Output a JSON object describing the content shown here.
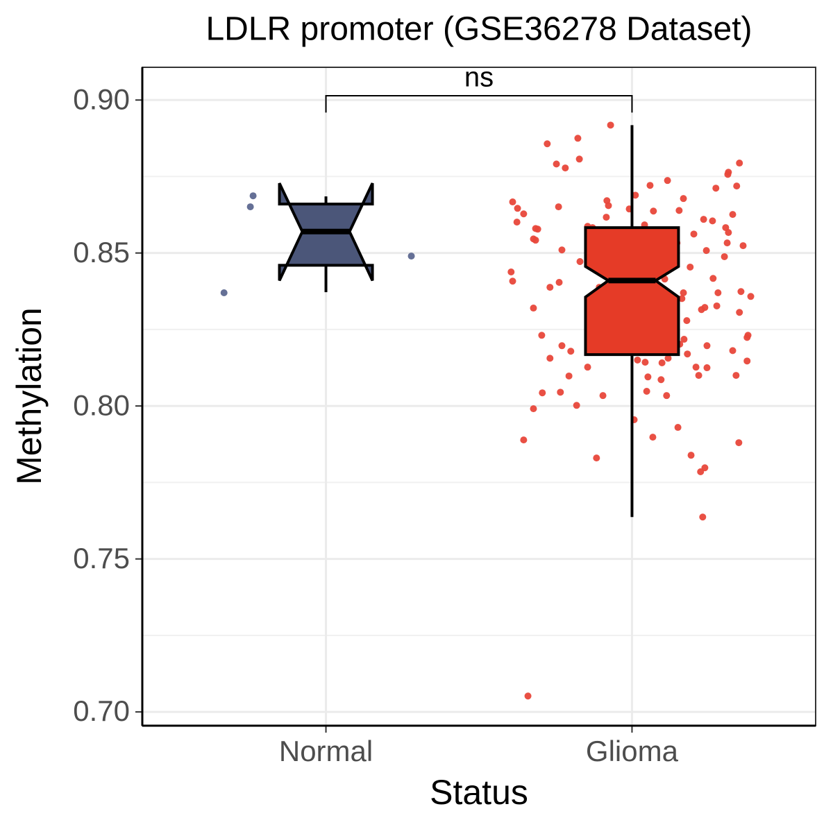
{
  "chart_data": {
    "type": "boxplot",
    "title": "LDLR promoter (GSE36278 Dataset)",
    "x_label": "Status",
    "y_label": "Methylation",
    "categories": [
      "Normal",
      "Glioma"
    ],
    "xlim": [
      0.4,
      2.6
    ],
    "ylim": [
      0.6955,
      0.9107
    ],
    "yticks": [
      {
        "value": 0.7,
        "label": "0.70"
      },
      {
        "value": 0.75,
        "label": "0.75"
      },
      {
        "value": 0.8,
        "label": "0.80"
      },
      {
        "value": 0.85,
        "label": "0.85"
      },
      {
        "value": 0.9,
        "label": "0.90"
      }
    ],
    "y_minor_grid": [
      0.725,
      0.775,
      0.825,
      0.875
    ],
    "grid": true,
    "boxes": [
      {
        "fill": "#4b5679",
        "whisker_low": 0.8372,
        "q1": 0.846,
        "median": 0.857,
        "q3": 0.866,
        "whisker_high": 0.8685,
        "notch_low": 0.841,
        "notch_high": 0.8728
      },
      {
        "fill": "#e53b27",
        "whisker_low": 0.7637,
        "q1": 0.8168,
        "median": 0.841,
        "q3": 0.8583,
        "whisker_high": 0.8918,
        "notch_low": 0.8356,
        "notch_high": 0.8456
      }
    ],
    "points": [
      {
        "color": "#5d6890",
        "x": [
          0.762,
          0.753,
          0.667,
          1.279
        ],
        "values": [
          0.8687,
          0.8651,
          0.837,
          0.849
        ]
      },
      {
        "color": "#e8473a",
        "x": [
          1.93,
          1.823,
          1.723,
          1.828,
          1.753,
          1.782,
          2.351,
          2.315,
          2.313,
          2.342,
          2.274,
          2.116,
          2.059,
          2.011,
          2.168,
          1.918,
          1.61,
          1.923,
          1.626,
          1.76,
          1.991,
          2.154,
          2.07,
          1.646,
          2.329,
          1.916,
          1.624,
          2.234,
          2.263,
          2.041,
          1.855,
          1.871,
          1.685,
          1.692,
          2.306,
          2.315,
          2.202,
          1.678,
          1.685,
          2.311,
          2.363,
          2.147,
          1.771,
          2.243,
          2.302,
          1.83,
          2.19,
          1.605,
          2.265,
          1.61,
          1.762,
          2.107,
          2.048,
          1.732,
          1.893,
          2.356,
          2.281,
          2.168,
          2.388,
          2.163,
          2.238,
          2.227,
          2.277,
          1.678,
          2.351,
          2.179,
          1.705,
          2.379,
          2.376,
          2.17,
          2.156,
          1.771,
          2.245,
          1.8,
          2.329,
          2.181,
          2.018,
          1.732,
          2.118,
          2.376,
          2.043,
          2.209,
          2.098,
          2.245,
          1.855,
          2.218,
          2.34,
          2.052,
          1.794,
          2.095,
          2.048,
          2.113,
          1.707,
          1.766,
          1.905,
          1.819,
          1.678,
          2.007,
          2.15,
          2.068,
          1.646,
          2.349,
          1.884,
          2.193,
          2.238,
          2.224,
          2.231,
          1.66
        ],
        "values": [
          0.8918,
          0.8875,
          0.8857,
          0.8807,
          0.8791,
          0.8778,
          0.8794,
          0.8764,
          0.8757,
          0.8719,
          0.8712,
          0.8737,
          0.8721,
          0.8689,
          0.8678,
          0.8671,
          0.8667,
          0.8655,
          0.8646,
          0.8651,
          0.8644,
          0.8639,
          0.8637,
          0.8628,
          0.8626,
          0.8617,
          0.8601,
          0.861,
          0.8605,
          0.8592,
          0.8587,
          0.8583,
          0.858,
          0.8578,
          0.8583,
          0.8567,
          0.8562,
          0.8546,
          0.8542,
          0.8533,
          0.8524,
          0.8533,
          0.851,
          0.8508,
          0.8488,
          0.8472,
          0.8454,
          0.8438,
          0.8417,
          0.8408,
          0.8404,
          0.8415,
          0.841,
          0.8388,
          0.8388,
          0.8374,
          0.837,
          0.837,
          0.8358,
          0.8351,
          0.8322,
          0.8315,
          0.8327,
          0.832,
          0.8306,
          0.8279,
          0.8231,
          0.8231,
          0.8224,
          0.8218,
          0.8202,
          0.8197,
          0.8197,
          0.8179,
          0.8181,
          0.817,
          0.815,
          0.8156,
          0.8156,
          0.8147,
          0.8143,
          0.8127,
          0.8141,
          0.8125,
          0.8127,
          0.81,
          0.81,
          0.8095,
          0.8098,
          0.8086,
          0.8048,
          0.8034,
          0.8043,
          0.8045,
          0.8034,
          0.8002,
          0.7991,
          0.7955,
          0.793,
          0.7898,
          0.7889,
          0.788,
          0.783,
          0.7839,
          0.7798,
          0.7785,
          0.7637,
          0.7052
        ]
      }
    ],
    "comparison": {
      "label": "ns",
      "y": 0.9014,
      "tip": 0.8959
    }
  }
}
